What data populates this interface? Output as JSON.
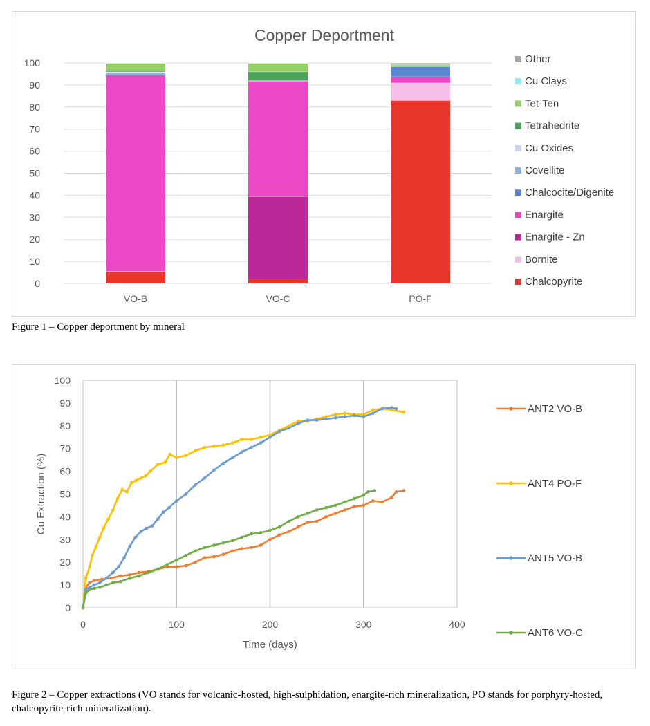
{
  "figure1": {
    "caption": "Figure 1 – Copper deportment by mineral",
    "chart_data": {
      "type": "bar",
      "stacked": true,
      "title": "Copper Deportment",
      "categories": [
        "VO-B",
        "VO-C",
        "PO-F"
      ],
      "ylim": [
        0,
        100
      ],
      "yticks": [
        0,
        10,
        20,
        30,
        40,
        50,
        60,
        70,
        80,
        90,
        100
      ],
      "grid": true,
      "legend_position": "right",
      "legend_order": [
        "Other",
        "Cu Clays",
        "Tet-Ten",
        "Tetrahedrite",
        "Cu Oxides",
        "Covellite",
        "Chalcocite/Digenite",
        "Enargite",
        "Enargite - Zn",
        "Bornite",
        "Chalcopyrite"
      ],
      "series": [
        {
          "name": "Chalcopyrite",
          "color": "#e8352b",
          "values": [
            5.5,
            2,
            83
          ]
        },
        {
          "name": "Bornite",
          "color": "#f4bfe8",
          "values": [
            0,
            0,
            8
          ]
        },
        {
          "name": "Enargite - Zn",
          "color": "#bb2898",
          "values": [
            0,
            37.5,
            0
          ]
        },
        {
          "name": "Enargite",
          "color": "#ea48c4",
          "values": [
            89,
            52.3,
            2.8
          ]
        },
        {
          "name": "Chalcocite/Digenite",
          "color": "#5a86cf",
          "values": [
            0,
            0,
            4.5
          ]
        },
        {
          "name": "Covellite",
          "color": "#8fb0e0",
          "values": [
            1.2,
            0,
            0
          ]
        },
        {
          "name": "Cu Oxides",
          "color": "#c9d7ee",
          "values": [
            0.3,
            0.2,
            0
          ]
        },
        {
          "name": "Tetrahedrite",
          "color": "#4aa45a",
          "values": [
            0.5,
            4,
            0.5
          ]
        },
        {
          "name": "Tet-Ten",
          "color": "#95cf67",
          "values": [
            3.3,
            3.8,
            0.5
          ]
        },
        {
          "name": "Cu Clays",
          "color": "#8af2f8",
          "values": [
            0,
            0,
            0
          ]
        },
        {
          "name": "Other",
          "color": "#a6a6a6",
          "values": [
            0.2,
            0.2,
            0.7
          ]
        }
      ]
    }
  },
  "figure2": {
    "caption": "Figure 2 – Copper extractions (VO stands for volcanic-hosted, high-sulphidation, enargite-rich mineralization, PO stands for porphyry-hosted, chalcopyrite-rich mineralization).",
    "chart_data": {
      "type": "line",
      "title": "",
      "xlabel": "Time (days)",
      "ylabel": "Cu Extraction (%)",
      "xlim": [
        0,
        400
      ],
      "ylim": [
        0,
        100
      ],
      "xticks": [
        0,
        100,
        200,
        300,
        400
      ],
      "yticks": [
        0,
        10,
        20,
        30,
        40,
        50,
        60,
        70,
        80,
        90,
        100
      ],
      "grid": "vertical",
      "legend_position": "right",
      "series": [
        {
          "name": "ANT2 VO-B",
          "color": "#ed7d31",
          "x": [
            0,
            3,
            7,
            12,
            20,
            30,
            40,
            50,
            60,
            70,
            80,
            90,
            100,
            110,
            120,
            130,
            140,
            150,
            160,
            170,
            180,
            190,
            200,
            210,
            220,
            230,
            240,
            250,
            260,
            270,
            280,
            290,
            300,
            310,
            320,
            330,
            335,
            343
          ],
          "y": [
            0,
            9,
            11,
            12,
            12.5,
            13,
            14,
            14.5,
            15.5,
            16,
            17,
            18,
            18,
            18.5,
            20,
            22,
            22.5,
            23.5,
            25,
            26,
            26.5,
            27.5,
            30,
            32,
            33.5,
            35.5,
            37.5,
            38,
            40,
            41.5,
            43,
            44.5,
            45,
            47,
            46.5,
            48.5,
            51,
            51.5
          ]
        },
        {
          "name": "ANT4 PO-F",
          "color": "#ffc000",
          "x": [
            0,
            3,
            7,
            10,
            14,
            18,
            22,
            27,
            32,
            37,
            42,
            47,
            52,
            57,
            62,
            67,
            72,
            80,
            88,
            93,
            100,
            110,
            120,
            130,
            140,
            150,
            160,
            170,
            180,
            190,
            200,
            210,
            220,
            230,
            240,
            250,
            260,
            270,
            280,
            290,
            300,
            310,
            320,
            330,
            343
          ],
          "y": [
            0,
            13,
            18,
            23,
            27,
            31,
            35,
            39,
            43,
            48,
            52,
            51,
            55,
            56,
            57,
            58,
            60,
            63,
            64,
            67.5,
            66,
            67,
            69,
            70.5,
            71,
            71.5,
            72.5,
            74,
            74,
            75,
            76,
            78,
            80,
            82,
            82,
            83,
            84,
            85,
            85.5,
            85,
            85,
            87,
            87.5,
            87,
            86
          ]
        },
        {
          "name": "ANT5 VO-B",
          "color": "#6a9bd3",
          "x": [
            0,
            3,
            7,
            12,
            18,
            25,
            32,
            38,
            44,
            50,
            56,
            62,
            68,
            74,
            80,
            86,
            92,
            100,
            110,
            120,
            130,
            140,
            150,
            160,
            170,
            180,
            190,
            200,
            210,
            220,
            230,
            240,
            250,
            260,
            270,
            280,
            290,
            300,
            310,
            320,
            330,
            335
          ],
          "y": [
            0,
            8,
            9,
            10,
            11,
            13,
            15.5,
            18,
            22,
            27,
            31,
            33.5,
            35,
            36,
            39,
            42,
            44,
            47,
            50,
            54,
            57,
            60.5,
            63.5,
            66,
            68.5,
            70.5,
            72.5,
            75,
            77.5,
            79,
            81,
            82.5,
            82.5,
            83,
            83.5,
            84,
            84.5,
            84,
            85.5,
            87.5,
            88,
            87.5
          ]
        },
        {
          "name": "ANT6 VO-C",
          "color": "#70ad47",
          "x": [
            0,
            3,
            7,
            12,
            18,
            25,
            32,
            40,
            50,
            60,
            70,
            80,
            90,
            100,
            110,
            120,
            130,
            140,
            150,
            160,
            170,
            180,
            190,
            200,
            210,
            220,
            230,
            240,
            250,
            260,
            270,
            280,
            290,
            300,
            305,
            312
          ],
          "y": [
            0,
            6.5,
            8,
            8.5,
            9,
            10,
            11,
            11.5,
            13,
            14,
            15.5,
            17,
            19,
            21,
            23,
            25,
            26.5,
            27.5,
            28.5,
            29.5,
            31,
            32.5,
            33,
            34,
            35.5,
            38,
            40,
            41.5,
            43,
            44,
            45,
            46.5,
            48,
            49.5,
            51,
            51.5
          ]
        }
      ]
    }
  }
}
